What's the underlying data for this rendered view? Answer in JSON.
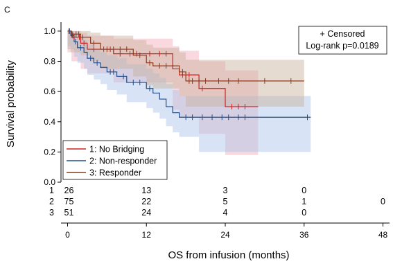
{
  "chart_data": {
    "type": "line",
    "panel_label": "C",
    "xlabel": "OS from infusion (months)",
    "ylabel": "Survival probability",
    "xlim": [
      -1,
      49
    ],
    "ylim": [
      0,
      1.05
    ],
    "xticks": [
      "0",
      "12",
      "24",
      "36",
      "48"
    ],
    "xtick_values": [
      0,
      12,
      24,
      36,
      48
    ],
    "yticks": [
      "0.0",
      "0.2",
      "0.4",
      "0.6",
      "0.8",
      "1.0"
    ],
    "ytick_values": [
      0,
      0.2,
      0.4,
      0.6,
      0.8,
      1.0
    ],
    "annotation_lines": [
      "+ Censored",
      "Log-rank p=0.0189"
    ],
    "legend_position": "bottom-left",
    "series": [
      {
        "name": "1: No Bridging",
        "color": "#cc2222",
        "band_color": "#f2aab8",
        "steps": [
          [
            0,
            1.0
          ],
          [
            0.6,
            0.96
          ],
          [
            2,
            0.92
          ],
          [
            3,
            0.88
          ],
          [
            7,
            0.85
          ],
          [
            16,
            0.75
          ],
          [
            17,
            0.71
          ],
          [
            20,
            0.62
          ],
          [
            24,
            0.5
          ],
          [
            29,
            0.5
          ]
        ],
        "ci_steps": [
          [
            0,
            1.0,
            0.86
          ],
          [
            0.6,
            1.0,
            0.8
          ],
          [
            2,
            0.99,
            0.75
          ],
          [
            3,
            0.97,
            0.72
          ],
          [
            7,
            0.95,
            0.66
          ],
          [
            16,
            0.9,
            0.48
          ],
          [
            17,
            0.87,
            0.43
          ],
          [
            20,
            0.8,
            0.32
          ],
          [
            24,
            0.74,
            0.18
          ],
          [
            29,
            0.74,
            0.18
          ]
        ],
        "censored": [
          1,
          1.8,
          2.5,
          4,
          5.5,
          6.5,
          8,
          9.5,
          10.5,
          12.5,
          14,
          15,
          17.5,
          18.5,
          20.5,
          25,
          26,
          27
        ]
      },
      {
        "name": "2: Non-responder",
        "color": "#1f4e8c",
        "band_color": "#a9c4ea",
        "steps": [
          [
            0,
            1.0
          ],
          [
            0.5,
            0.97
          ],
          [
            1,
            0.93
          ],
          [
            1.5,
            0.89
          ],
          [
            2.5,
            0.86
          ],
          [
            3,
            0.82
          ],
          [
            4,
            0.79
          ],
          [
            5,
            0.76
          ],
          [
            6,
            0.73
          ],
          [
            7.5,
            0.7
          ],
          [
            9,
            0.66
          ],
          [
            12,
            0.62
          ],
          [
            13,
            0.59
          ],
          [
            14,
            0.55
          ],
          [
            15,
            0.5
          ],
          [
            16,
            0.46
          ],
          [
            17,
            0.43
          ],
          [
            37,
            0.43
          ]
        ],
        "ci_steps": [
          [
            0,
            1.0,
            0.9
          ],
          [
            0.5,
            1.0,
            0.88
          ],
          [
            1,
            0.98,
            0.83
          ],
          [
            1.5,
            0.96,
            0.79
          ],
          [
            2.5,
            0.94,
            0.75
          ],
          [
            3,
            0.91,
            0.71
          ],
          [
            4,
            0.88,
            0.68
          ],
          [
            5,
            0.86,
            0.65
          ],
          [
            6,
            0.84,
            0.61
          ],
          [
            7.5,
            0.82,
            0.58
          ],
          [
            9,
            0.78,
            0.53
          ],
          [
            12,
            0.75,
            0.49
          ],
          [
            13,
            0.72,
            0.46
          ],
          [
            14,
            0.69,
            0.42
          ],
          [
            15,
            0.65,
            0.37
          ],
          [
            16,
            0.61,
            0.33
          ],
          [
            17,
            0.57,
            0.3
          ],
          [
            20,
            0.57,
            0.2
          ],
          [
            37,
            0.57,
            0.2
          ]
        ],
        "censored": [
          0.3,
          0.8,
          1.2,
          2,
          3.5,
          4.5,
          6.5,
          7,
          8.5,
          10,
          11,
          12.5,
          18,
          19,
          20.5,
          22,
          23.5,
          24.5,
          26,
          27,
          36.5
        ]
      },
      {
        "name": "3: Responder",
        "color": "#8b3a1a",
        "band_color": "#c7b09a",
        "steps": [
          [
            0,
            1.0
          ],
          [
            0.5,
            0.98
          ],
          [
            2,
            0.96
          ],
          [
            3.5,
            0.92
          ],
          [
            5,
            0.88
          ],
          [
            10,
            0.84
          ],
          [
            12,
            0.79
          ],
          [
            13,
            0.77
          ],
          [
            17,
            0.73
          ],
          [
            18,
            0.67
          ],
          [
            36,
            0.67
          ]
        ],
        "ci_steps": [
          [
            0,
            1.0,
            0.88
          ],
          [
            0.5,
            1.0,
            0.86
          ],
          [
            2,
            1.0,
            0.84
          ],
          [
            3.5,
            0.99,
            0.8
          ],
          [
            5,
            0.97,
            0.75
          ],
          [
            10,
            0.94,
            0.7
          ],
          [
            12,
            0.91,
            0.64
          ],
          [
            13,
            0.89,
            0.62
          ],
          [
            17,
            0.86,
            0.57
          ],
          [
            18,
            0.81,
            0.5
          ],
          [
            36,
            0.81,
            0.5
          ]
        ],
        "censored": [
          0.2,
          0.7,
          1.3,
          1.7,
          2.3,
          4,
          6,
          7,
          8,
          9,
          11,
          12.5,
          14,
          15,
          17.5,
          18.5,
          19,
          20,
          21,
          23,
          24.5,
          26,
          30,
          34
        ]
      }
    ],
    "risk_table": {
      "row_labels": [
        "1",
        "2",
        "3"
      ],
      "rows": [
        [
          "26",
          "13",
          "3",
          "0",
          ""
        ],
        [
          "75",
          "22",
          "5",
          "1",
          "0"
        ],
        [
          "51",
          "24",
          "4",
          "0",
          ""
        ]
      ]
    }
  }
}
